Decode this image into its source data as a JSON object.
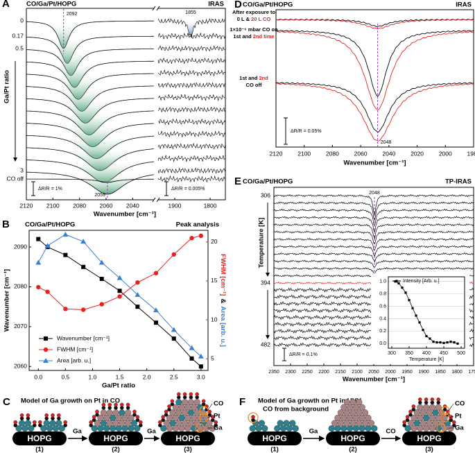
{
  "chart_data": [
    {
      "type": "spectra",
      "label": "A",
      "title": "CO/Ga/Pt/HOPG",
      "title_right": "IRAS",
      "xlabel": "Wavenumber [cm⁻¹]",
      "ylabel": "Ga/Pt ratio",
      "xlim": [
        2120,
        2024
      ],
      "xticks": [
        2120,
        2100,
        2080,
        2060,
        2040
      ],
      "x2lim": [
        1947,
        1757
      ],
      "x2ticks": [
        1900,
        1800
      ],
      "row_labels": [
        "0",
        "0.17",
        "0.5",
        "3",
        "CO off"
      ],
      "annotations": [
        "2092",
        "1855",
        "2059"
      ],
      "scale_bars": [
        "ΔR/R = 1%",
        "ΔR/R = 0.005%"
      ]
    },
    {
      "type": "line",
      "label": "B",
      "title": "CO/Ga/Pt/HOPG",
      "title_right": "Peak analysis",
      "xlabel": "Ga/Pt ratio",
      "ylabel": "Wavenumber [cm⁻¹]",
      "y2label": "FWHM [cm⁻¹]",
      "label_joiner": "&",
      "y3label": "Area [arb. u.]",
      "x": [
        0,
        0.17,
        0.5,
        0.83,
        1.17,
        1.5,
        1.83,
        2.17,
        2.5,
        2.83,
        3.0
      ],
      "xlim": [
        -0.17,
        3.13
      ],
      "xticks": [
        {
          "value": 0,
          "label": "0.0"
        },
        0.5,
        {
          "value": 1,
          "label": "1.0"
        },
        1.5,
        {
          "value": 2,
          "label": "2.0"
        },
        2.5,
        {
          "value": 3,
          "label": "3.0"
        }
      ],
      "ylim": [
        2059,
        2094.2
      ],
      "yticks": [
        2060,
        2070,
        2080,
        2090
      ],
      "y2lim": [
        3.5,
        21.5
      ],
      "y2ticks": [
        5,
        10,
        15,
        20
      ],
      "y3lim": [
        0,
        1
      ],
      "legend": "lower left",
      "series": [
        {
          "name": "Wavenumber [cm⁻¹]",
          "color": "#000000",
          "marker": "square",
          "axis": "y",
          "values": [
            2092,
            2090,
            2088,
            2085,
            2082,
            2079,
            2075,
            2071,
            2067,
            2062,
            2060
          ]
        },
        {
          "name": "FWHM [cm⁻¹]",
          "color": "#e8201e",
          "marker": "circle",
          "axis": "y2",
          "values": [
            14.2,
            13.6,
            11.4,
            11.3,
            12.0,
            13.0,
            14.8,
            16.0,
            18.4,
            20.5,
            20.8
          ]
        },
        {
          "name": "Area [arb. u.]",
          "color": "#3a7fd0",
          "marker": "triangle",
          "axis": "y3",
          "values": [
            0.77,
            0.89,
            0.97,
            0.92,
            0.77,
            0.66,
            0.54,
            0.43,
            0.29,
            0.16,
            0.1
          ]
        }
      ]
    },
    {
      "type": "spectra",
      "label": "D",
      "title": "CO/Ga/Pt/HOPG",
      "title_right": "IRAS",
      "xlabel": "Wavenumber [cm⁻¹]",
      "xlim": [
        2120,
        1980
      ],
      "xticks": [
        2120,
        2100,
        2080,
        2060,
        2040,
        2020,
        2000,
        1980
      ],
      "series_colors": [
        "#000000",
        "#e8201e"
      ],
      "notes": [
        [
          {
            "text": "After exposure to",
            "color": "#000000"
          }
        ],
        [
          {
            "text": "0 L & ",
            "color": "#000000"
          },
          {
            "text": "20 L CO",
            "color": "#e8201e"
          }
        ],
        [
          {
            "text": "1×10⁻⁶ mbar CO on",
            "color": "#000000"
          }
        ],
        [
          {
            "text": "1st and ",
            "color": "#000000"
          },
          {
            "text": "2nd time",
            "color": "#e8201e"
          }
        ],
        [
          {
            "text": "1st and ",
            "color": "#000000"
          },
          {
            "text": "2nd",
            "color": "#e8201e"
          }
        ],
        [
          {
            "text": "CO off",
            "color": "#000000"
          }
        ]
      ],
      "annotations": [
        "2048"
      ],
      "scale_bars": [
        "ΔR/R = 0.05%"
      ]
    },
    {
      "type": "spectra",
      "label": "E",
      "title": "CO/Ga/Pt/HOPG",
      "title_right": "TP-IRAS",
      "xlabel": "Wavenumber [cm⁻¹]",
      "ylabel": "Temperature [K]",
      "xlim": [
        2350,
        1750
      ],
      "xticks": [
        2350,
        2300,
        2250,
        2200,
        2150,
        2100,
        2050,
        2000,
        1950,
        1900,
        1850,
        1800,
        1750
      ],
      "temperature_labels": [
        306,
        394,
        482
      ],
      "highlight_color": "#e8201e",
      "annotations": [
        "2048"
      ],
      "scale_bars": [
        "ΔR/R = 0.1%"
      ]
    },
    {
      "type": "line",
      "xlabel": "Temperature [K]",
      "x": [
        310,
        320,
        330,
        340,
        350,
        360,
        370,
        380,
        390,
        400,
        410,
        420,
        430,
        440,
        450,
        460,
        470,
        480,
        490
      ],
      "xlim": [
        290,
        510
      ],
      "xticks": [
        300,
        350,
        400,
        450,
        500
      ],
      "ylim": [
        -0.075,
        1.075
      ],
      "yticks": [
        {
          "value": 0,
          "label": "0.0"
        },
        0.2,
        0.4,
        0.6,
        0.8,
        {
          "value": 1,
          "label": "1.0"
        }
      ],
      "grid": true,
      "legend": "upper right",
      "series": [
        {
          "name": "Intensity [Arb. u.]",
          "color": "#000000",
          "marker": "square",
          "axis": "y",
          "values": [
            1.0,
            0.97,
            0.9,
            0.82,
            0.7,
            0.57,
            0.45,
            0.34,
            0.22,
            0.12,
            0.08,
            0.03,
            0.02,
            0.02,
            0.01,
            0.02,
            0.03,
            0.02,
            0.0
          ]
        }
      ]
    }
  ],
  "diagrams": [
    {
      "label": "C",
      "title": "Model of Ga growth on Pt in CO",
      "substrate": "HOPG",
      "arrows": [
        "Ga",
        "Ga"
      ],
      "steps": [
        "(1)",
        "(2)",
        "(3)"
      ],
      "legend": [
        "CO",
        "Pt",
        "Ga"
      ]
    },
    {
      "label": "F",
      "title": "Model of Ga growth on Pt in UHV",
      "callout": "CO from background",
      "substrate": "HOPG",
      "arrows": [
        "Ga",
        "CO"
      ],
      "steps": [
        "(1)",
        "(2)",
        "(3)"
      ],
      "legend": [
        "CO",
        "Pt",
        "Ga"
      ]
    }
  ]
}
